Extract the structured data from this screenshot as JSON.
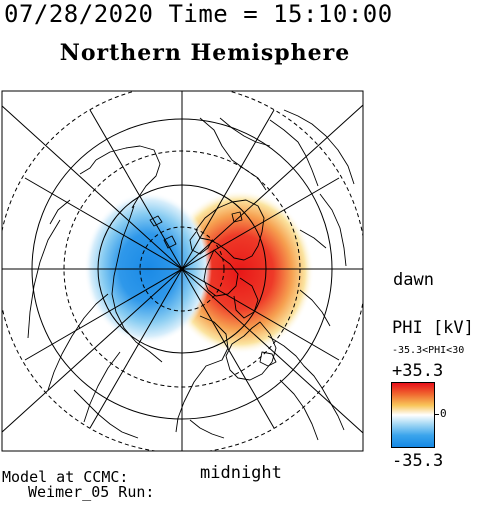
{
  "header": {
    "datetime": "07/28/2020 Time = 15:10:00"
  },
  "map": {
    "title": "Northern Hemisphere",
    "labels": {
      "dawn": "dawn",
      "midnight": "midnight"
    }
  },
  "colorbar": {
    "label": "PHI [kV]",
    "range_text": "-35.3<PHI<30",
    "max": "+35.3",
    "zero": "0",
    "min": "-35.3",
    "colors": {
      "positive": "#e8101a",
      "neutral": "#ffffff",
      "negative": "#1588e4"
    }
  },
  "footer": {
    "line1": "Model at CCMC:",
    "line2": "Weimer_05 Run:"
  },
  "icons": [
    "polar-projection-map",
    "color-scale-bar"
  ]
}
